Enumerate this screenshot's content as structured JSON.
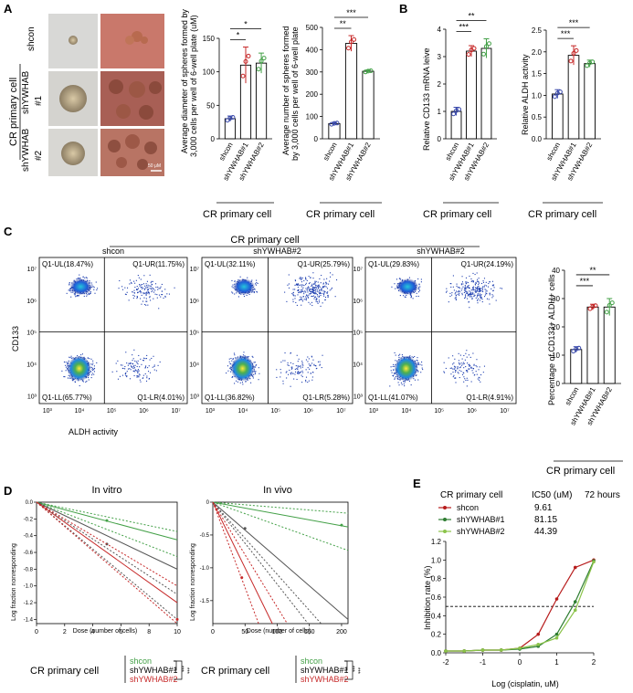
{
  "panels": {
    "A": "A",
    "B": "B",
    "C": "C",
    "D": "D",
    "E": "E"
  },
  "common": {
    "group_label": "CR primary cell",
    "shcon": "shcon",
    "sh1": "shYWHAB#1",
    "sh2": "shYWHAB#2",
    "sh2_row": "shYWHAB\n#2",
    "sh1_row": "shYWHAB\n#1"
  },
  "panelA": {
    "row_labels": [
      "shcon",
      "shYWHAB #1",
      "shYWHAB #2"
    ],
    "vertical_label": "CR primary cell",
    "scale_bar": "50 μM",
    "chart1": {
      "ylabel1": "Average diameter of spheres formed by",
      "ylabel2": "3,000 cells per well of 6-well plate (uM)",
      "ticks": [
        0,
        50,
        100,
        150
      ],
      "sig": [
        "*",
        "*"
      ]
    },
    "chart2": {
      "ylabel1": "Average number of spheres formed",
      "ylabel2": "by 3,000 cells per well of 6-well plate",
      "ticks": [
        0,
        100,
        200,
        300,
        400,
        500
      ],
      "sig": [
        "**",
        "***"
      ]
    }
  },
  "panelB": {
    "chart1": {
      "ylabel": "Relative CD133 mRNA leive",
      "ticks": [
        0,
        1,
        2,
        3,
        4
      ],
      "sig": [
        "***",
        "**"
      ]
    },
    "chart2": {
      "ylabel": "Relative ALDH activity",
      "ticks": [
        0.0,
        0.5,
        1.0,
        1.5,
        2.0,
        2.5
      ],
      "sig": [
        "***",
        "***"
      ]
    }
  },
  "panelC": {
    "title": "CR primary cell",
    "plots": [
      {
        "name": "shcon",
        "UL": "Q1-UL(18.47%)",
        "UR": "Q1-UR(11.75%)",
        "LL": "Q1-LL(65.77%)",
        "LR": "Q1-LR(4.01%)"
      },
      {
        "name": "shYWHAB#2",
        "UL": "Q1-UL(32.11%)",
        "UR": "Q1-UR(25.79%)",
        "LL": "Q1-LL(36.82%)",
        "LR": "Q1-LR(5.28%)"
      },
      {
        "name": "shYWHAB#2",
        "UL": "Q1-UL(29.83%)",
        "UR": "Q1-UR(24.19%)",
        "LL": "Q1-LL(41.07%)",
        "LR": "Q1-LR(4.91%)"
      }
    ],
    "ylabel": "CD133",
    "xlabel": "ALDH activity",
    "bar": {
      "ylabel": "Percentage of CD133+ ALDH+ cells",
      "ticks": [
        0,
        10,
        20,
        30,
        40
      ],
      "sig": [
        "***",
        "**"
      ]
    }
  },
  "panelD": {
    "invitro": {
      "title": "In vitro",
      "xlabel": "Dose (number of cells)",
      "ylabel": "Log fraction nonresponding",
      "xticks": [
        0,
        2,
        4,
        6,
        8,
        10
      ],
      "yticks": [
        "0.0",
        "-0.2",
        "-0.4",
        "-0.6",
        "-0.8",
        "-1.0",
        "-1.2",
        "-1.4"
      ]
    },
    "invivo": {
      "title": "In vivo",
      "xlabel": "Dose (number of cells)",
      "ylabel": "Log fraction nonresponding",
      "xticks": [
        0,
        50,
        100,
        150,
        200
      ],
      "yticks": [
        "0",
        "-0.5",
        "-1.0",
        "-1.5"
      ]
    },
    "legend": {
      "shcon": "shcon",
      "sh1": "shYWHAB#1",
      "sh2": "shYWHAB#2",
      "sig_a": "***",
      "sig_b": "***"
    }
  },
  "panelE": {
    "header": {
      "group": "CR primary cell",
      "ic50": "IC50 (uM)",
      "time": "72 hours"
    },
    "legend": [
      {
        "name": "shcon",
        "ic50": "9.61"
      },
      {
        "name": "shYWHAB#1",
        "ic50": "81.15"
      },
      {
        "name": "shYWHAB#2",
        "ic50": "44.39"
      }
    ],
    "ylabel": "Inhibition rate (%)",
    "xlabel": "Log (cisplatin, uM)"
  },
  "colors": {
    "shcon": "#b71c1c",
    "sh1": "#2e7d32",
    "sh2": "#8bc34a",
    "red": "#c62828",
    "blue": "#3949ab",
    "green": "#43a047"
  },
  "chart_data": [
    {
      "type": "bar",
      "panel": "A-1",
      "categories": [
        "shcon",
        "shYWHAB#1",
        "shYWHAB#2"
      ],
      "values": [
        30,
        110,
        113
      ],
      "errors": [
        4,
        27,
        15
      ],
      "ylim": [
        0,
        150
      ],
      "title": ""
    },
    {
      "type": "bar",
      "panel": "A-2",
      "categories": [
        "shcon",
        "shYWHAB#1",
        "shYWHAB#2"
      ],
      "values": [
        68,
        428,
        303
      ],
      "errors": [
        5,
        35,
        5
      ],
      "ylim": [
        0,
        500
      ],
      "title": ""
    },
    {
      "type": "bar",
      "panel": "B-1",
      "categories": [
        "shcon",
        "shYWHAB#1",
        "shYWHAB#2"
      ],
      "values": [
        1.0,
        3.2,
        3.3
      ],
      "errors": [
        0.15,
        0.2,
        0.35
      ],
      "ylim": [
        0,
        4
      ],
      "title": ""
    },
    {
      "type": "bar",
      "panel": "B-2",
      "categories": [
        "shcon",
        "shYWHAB#1",
        "shYWHAB#2"
      ],
      "values": [
        1.03,
        1.92,
        1.73
      ],
      "errors": [
        0.1,
        0.22,
        0.08
      ],
      "ylim": [
        0,
        2.5
      ],
      "title": ""
    },
    {
      "type": "bar",
      "panel": "C",
      "categories": [
        "shcon",
        "shYWHAB#1",
        "shYWHAB#2"
      ],
      "values": [
        12,
        27,
        27
      ],
      "errors": [
        1,
        1,
        3
      ],
      "ylim": [
        0,
        40
      ],
      "title": ""
    },
    {
      "type": "line",
      "panel": "E",
      "x": [
        -2,
        -1.5,
        -1,
        -0.5,
        0,
        0.5,
        1,
        1.5,
        2
      ],
      "series": [
        {
          "name": "shcon",
          "values": [
            0.02,
            0.02,
            0.03,
            0.03,
            0.05,
            0.2,
            0.58,
            0.92,
            1.0
          ]
        },
        {
          "name": "shYWHAB#1",
          "values": [
            0.02,
            0.02,
            0.03,
            0.03,
            0.04,
            0.07,
            0.2,
            0.55,
            0.99
          ]
        },
        {
          "name": "shYWHAB#2",
          "values": [
            0.02,
            0.02,
            0.03,
            0.03,
            0.05,
            0.09,
            0.16,
            0.46,
            0.98
          ]
        }
      ],
      "xlim": [
        -2,
        2
      ],
      "ylim": [
        0,
        1.2
      ],
      "threshold": 0.5
    }
  ]
}
